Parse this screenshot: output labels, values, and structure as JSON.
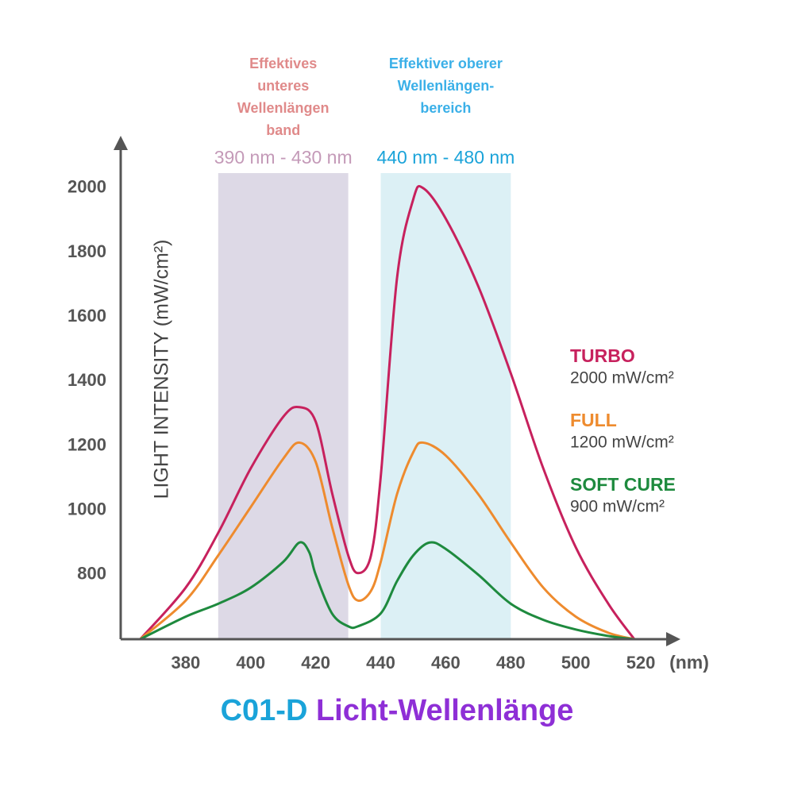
{
  "chart_data": {
    "type": "line",
    "title_parts": [
      {
        "text": "C01-D",
        "color": "#1aa3d9"
      },
      {
        "text": "Licht-Wellenlänge",
        "color": "#8e2fd6"
      }
    ],
    "ylabel": "LIGHT INTENSITY (mW/cm²)",
    "xlabel": "(nm)",
    "xlim": [
      360,
      530
    ],
    "ylim": [
      600,
      2140
    ],
    "xticks": [
      380,
      400,
      420,
      440,
      460,
      480,
      500,
      520
    ],
    "yticks": [
      800,
      1000,
      1200,
      1400,
      1600,
      1800,
      2000
    ],
    "grid": false,
    "bands": [
      {
        "range": [
          390,
          430
        ],
        "label": "390 nm - 430 nm",
        "note": [
          "Effektives",
          "unteres",
          "Wellenlängen",
          "band"
        ],
        "color": "#ddd9e6",
        "label_color": "#c49ab8",
        "note_color": "#e08a8a"
      },
      {
        "range": [
          440,
          480
        ],
        "label": "440 nm - 480 nm",
        "note": [
          "Effektiver oberer",
          "Wellenlängen-",
          "bereich"
        ],
        "color": "#dcf0f5",
        "label_color": "#1aa3d9",
        "note_color": "#3bb0e8"
      }
    ],
    "series": [
      {
        "name": "TURBO",
        "sublabel": "2000 mW/cm²",
        "color": "#c7215d",
        "x": [
          366,
          380,
          390,
          400,
          410,
          415,
          420,
          425,
          430,
          433,
          437,
          440,
          445,
          450,
          453,
          460,
          470,
          480,
          490,
          500,
          510,
          518
        ],
        "values": [
          600,
          760,
          930,
          1130,
          1290,
          1320,
          1275,
          1055,
          860,
          805,
          860,
          1105,
          1720,
          1965,
          2000,
          1905,
          1695,
          1425,
          1130,
          885,
          710,
          600
        ]
      },
      {
        "name": "FULL",
        "sublabel": "1200 mW/cm²",
        "color": "#ee8b2e",
        "x": [
          366,
          380,
          390,
          400,
          410,
          415,
          420,
          425,
          430,
          433,
          437,
          440,
          445,
          450,
          453,
          460,
          470,
          480,
          490,
          500,
          510,
          518
        ],
        "values": [
          600,
          720,
          860,
          1010,
          1160,
          1210,
          1150,
          950,
          770,
          720,
          750,
          840,
          1050,
          1180,
          1210,
          1170,
          1050,
          900,
          760,
          670,
          620,
          600
        ]
      },
      {
        "name": "SOFT CURE",
        "sublabel": "900 mW/cm²",
        "color": "#1e8a3e",
        "x": [
          366,
          380,
          390,
          400,
          410,
          415,
          418,
          420,
          425,
          430,
          433,
          440,
          445,
          450,
          455,
          460,
          470,
          480,
          490,
          500,
          510,
          518
        ],
        "values": [
          600,
          670,
          710,
          760,
          840,
          900,
          870,
          800,
          680,
          640,
          640,
          680,
          780,
          860,
          900,
          880,
          800,
          710,
          660,
          630,
          610,
          600
        ]
      }
    ]
  }
}
